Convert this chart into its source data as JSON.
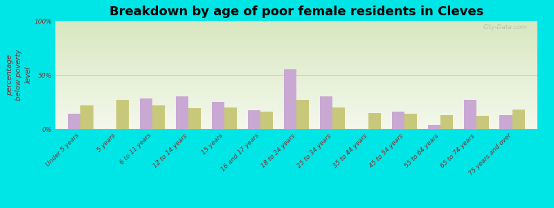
{
  "title": "Breakdown by age of poor female residents in Cleves",
  "ylabel": "percentage\nbelow poverty\nlevel",
  "categories": [
    "Under 5 years",
    "5 years",
    "6 to 11 years",
    "12 to 14 years",
    "15 years",
    "16 and 17 years",
    "18 to 24 years",
    "25 to 34 years",
    "35 to 44 years",
    "45 to 54 years",
    "55 to 64 years",
    "65 to 74 years",
    "75 years and over"
  ],
  "cleves": [
    14,
    0,
    28,
    30,
    25,
    17,
    55,
    30,
    0,
    16,
    4,
    27,
    13
  ],
  "ohio": [
    22,
    27,
    22,
    19,
    20,
    16,
    27,
    20,
    15,
    14,
    13,
    12,
    18
  ],
  "cleves_color": "#c9a8d4",
  "ohio_color": "#c8c87a",
  "bg_color": "#00e5e5",
  "grad_top": "#d8e8c0",
  "grad_bottom": "#f4f8ec",
  "ylim": [
    0,
    100
  ],
  "yticks": [
    0,
    50,
    100
  ],
  "ytick_labels": [
    "0%",
    "50%",
    "100%"
  ],
  "bar_width": 0.35,
  "title_fontsize": 13,
  "axis_label_fontsize": 7.5,
  "tick_fontsize": 6.5,
  "legend_fontsize": 9,
  "watermark": "City-Data.com"
}
